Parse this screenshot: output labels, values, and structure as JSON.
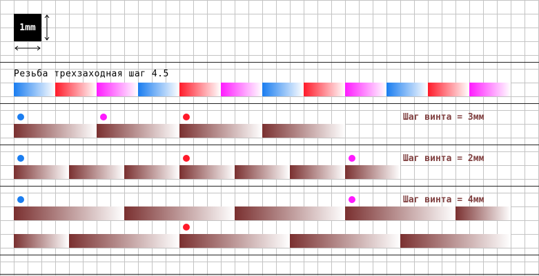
{
  "scale": {
    "label": "1mm"
  },
  "title": "Резьба трехзаходная шаг 4.5",
  "colors": {
    "blue": "#1a7df0",
    "red": "#ff1a2a",
    "magenta": "#ff1aff",
    "bar": "#7a3030",
    "label": "#804040"
  },
  "stripe_colors": [
    "blue",
    "red",
    "magenta",
    "blue",
    "red",
    "magenta",
    "blue",
    "red",
    "magenta",
    "blue",
    "red",
    "magenta"
  ],
  "sections": [
    {
      "label": "Шаг винта = 3мм",
      "rows": [
        {
          "dots": [
            {
              "color": "blue",
              "col": 1
            },
            {
              "color": "magenta",
              "col": 7
            },
            {
              "color": "red",
              "col": 13
            }
          ],
          "bars": [
            [
              1,
              6
            ],
            [
              7,
              12
            ],
            [
              13,
              18
            ],
            [
              19,
              24
            ]
          ]
        }
      ]
    },
    {
      "label": "Шаг винта = 2мм",
      "rows": [
        {
          "dots": [
            {
              "color": "blue",
              "col": 1
            },
            {
              "color": "red",
              "col": 13
            },
            {
              "color": "magenta",
              "col": 25
            }
          ],
          "bars": [
            [
              1,
              4
            ],
            [
              5,
              8
            ],
            [
              9,
              12
            ],
            [
              13,
              16
            ],
            [
              17,
              20
            ],
            [
              21,
              24
            ],
            [
              25,
              28
            ]
          ]
        }
      ]
    },
    {
      "label": "Шаг винта = 4мм",
      "rows": [
        {
          "dots": [
            {
              "color": "blue",
              "col": 1
            },
            {
              "color": "magenta",
              "col": 25
            }
          ],
          "bars": [
            [
              1,
              8
            ],
            [
              9,
              16
            ],
            [
              17,
              24
            ],
            [
              25,
              32
            ],
            [
              33,
              36
            ]
          ]
        },
        {
          "dots": [
            {
              "color": "red",
              "col": 13
            }
          ],
          "bars": [
            [
              1,
              4
            ],
            [
              5,
              12
            ],
            [
              13,
              20
            ],
            [
              21,
              28
            ],
            [
              29,
              36
            ]
          ]
        }
      ]
    }
  ]
}
